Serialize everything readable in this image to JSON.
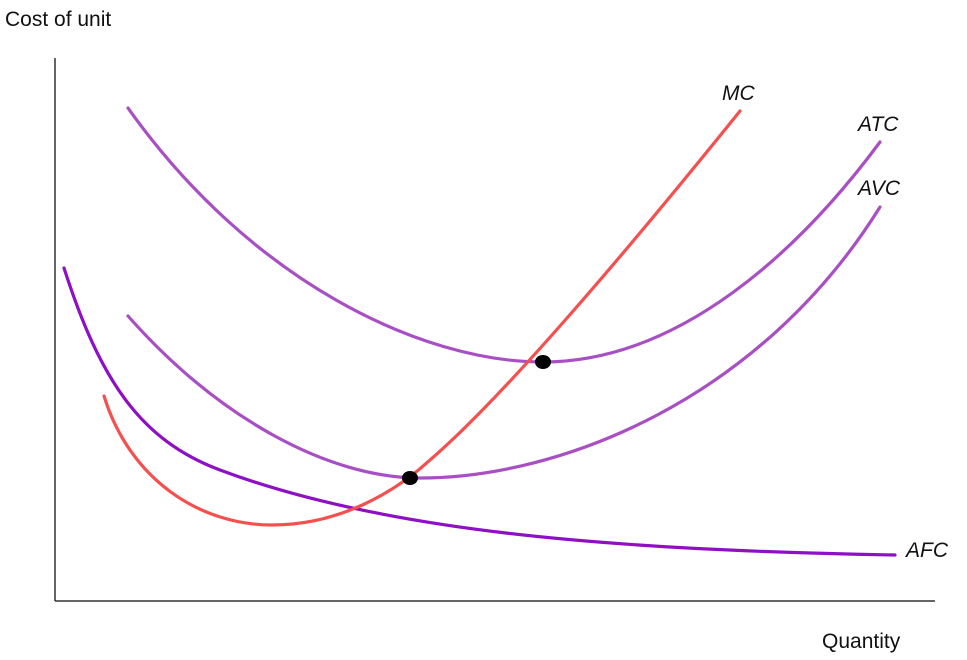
{
  "axes": {
    "y_label": "Cost of unit",
    "x_label": "Quantity"
  },
  "curves": {
    "mc": "MC",
    "atc": "ATC",
    "avc": "AVC",
    "afc": "AFC"
  }
}
